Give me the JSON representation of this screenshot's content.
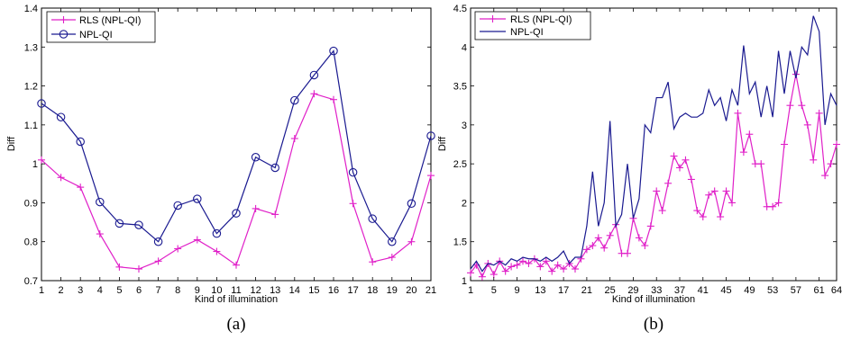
{
  "colors": {
    "rls": "#e020c8",
    "npl": "#1a1a90"
  },
  "chart_data": [
    {
      "type": "line",
      "caption": "(a)",
      "xlabel": "Kind of illumination",
      "ylabel": "Diff",
      "xlim": [
        1,
        21
      ],
      "ylim": [
        0.7,
        1.4
      ],
      "xticks": [
        1,
        2,
        3,
        4,
        5,
        6,
        7,
        8,
        9,
        10,
        11,
        12,
        13,
        14,
        15,
        16,
        17,
        18,
        19,
        20,
        21
      ],
      "yticks": [
        0.7,
        0.8,
        0.9,
        1.0,
        1.1,
        1.2,
        1.3,
        1.4
      ],
      "ytick_labels": [
        "0.7",
        "0.8",
        "0.9",
        "1",
        "1.1",
        "1.2",
        "1.3",
        "1.4"
      ],
      "legend": "top-left",
      "x": [
        1,
        2,
        3,
        4,
        5,
        6,
        7,
        8,
        9,
        10,
        11,
        12,
        13,
        14,
        15,
        16,
        17,
        18,
        19,
        20,
        21
      ],
      "series": [
        {
          "name": "RLS (NPL-QI)",
          "color_key": "rls",
          "marker": "plus",
          "values": [
            1.01,
            0.965,
            0.94,
            0.82,
            0.735,
            0.73,
            0.75,
            0.782,
            0.805,
            0.775,
            0.74,
            0.885,
            0.87,
            1.065,
            1.18,
            1.165,
            0.898,
            0.748,
            0.76,
            0.8,
            0.97
          ]
        },
        {
          "name": "NPL-QI",
          "color_key": "npl",
          "marker": "circle",
          "values": [
            1.155,
            1.12,
            1.057,
            0.902,
            0.847,
            0.843,
            0.8,
            0.893,
            0.91,
            0.821,
            0.873,
            1.017,
            0.99,
            1.163,
            1.228,
            1.29,
            0.978,
            0.859,
            0.8,
            0.898,
            1.072
          ]
        }
      ]
    },
    {
      "type": "line",
      "caption": "(b)",
      "xlabel": "Kind of illumination",
      "ylabel": "Diff",
      "xlim": [
        1,
        64
      ],
      "ylim": [
        1,
        4.5
      ],
      "xticks": [
        1,
        5,
        9,
        13,
        17,
        21,
        25,
        29,
        33,
        37,
        41,
        45,
        49,
        53,
        57,
        61,
        64
      ],
      "yticks": [
        1,
        1.5,
        2,
        2.5,
        3,
        3.5,
        4,
        4.5
      ],
      "ytick_labels": [
        "1",
        "1.5",
        "2",
        "2.5",
        "3",
        "3.5",
        "4",
        "4.5"
      ],
      "legend": "top-left",
      "series": [
        {
          "name": "RLS (NPL-QI)",
          "color_key": "rls",
          "marker": "plus",
          "x": [
            1,
            2,
            3,
            4,
            5,
            6,
            7,
            8,
            9,
            10,
            11,
            12,
            13,
            14,
            15,
            16,
            17,
            18,
            19,
            20,
            21,
            22,
            23,
            24,
            25,
            26,
            27,
            28,
            29,
            30,
            31,
            32,
            33,
            34,
            35,
            36,
            37,
            38,
            39,
            40,
            41,
            42,
            43,
            44,
            45,
            46,
            47,
            48,
            49,
            50,
            51,
            52,
            53,
            54,
            55,
            56,
            57,
            58,
            59,
            60,
            61,
            62,
            63,
            64
          ],
          "values": [
            1.1,
            1.2,
            1.05,
            1.22,
            1.08,
            1.25,
            1.12,
            1.18,
            1.2,
            1.25,
            1.22,
            1.28,
            1.18,
            1.25,
            1.12,
            1.2,
            1.15,
            1.22,
            1.15,
            1.28,
            1.4,
            1.45,
            1.55,
            1.42,
            1.58,
            1.72,
            1.35,
            1.35,
            1.8,
            1.55,
            1.45,
            1.7,
            2.15,
            1.9,
            2.25,
            2.6,
            2.45,
            2.55,
            2.3,
            1.9,
            1.82,
            2.1,
            2.15,
            1.82,
            2.15,
            2.0,
            3.15,
            2.65,
            2.88,
            2.5,
            2.5,
            1.95,
            1.95,
            2.0,
            2.75,
            3.25,
            3.65,
            3.25,
            3.0,
            2.55,
            3.15,
            2.35,
            2.5,
            2.75
          ]
        },
        {
          "name": "NPL-QI",
          "color_key": "npl",
          "marker": "none",
          "x": [
            1,
            2,
            3,
            4,
            5,
            6,
            7,
            8,
            9,
            10,
            11,
            12,
            13,
            14,
            15,
            16,
            17,
            18,
            19,
            20,
            21,
            22,
            23,
            24,
            25,
            26,
            27,
            28,
            29,
            30,
            31,
            32,
            33,
            34,
            35,
            36,
            37,
            38,
            39,
            40,
            41,
            42,
            43,
            44,
            45,
            46,
            47,
            48,
            49,
            50,
            51,
            52,
            53,
            54,
            55,
            56,
            57,
            58,
            59,
            60,
            61,
            62,
            63,
            64
          ],
          "values": [
            1.15,
            1.25,
            1.12,
            1.22,
            1.2,
            1.25,
            1.2,
            1.28,
            1.25,
            1.3,
            1.28,
            1.28,
            1.25,
            1.3,
            1.25,
            1.3,
            1.38,
            1.22,
            1.3,
            1.3,
            1.7,
            2.4,
            1.7,
            2.0,
            3.05,
            1.7,
            1.85,
            2.5,
            1.8,
            2.05,
            3.0,
            2.9,
            3.35,
            3.35,
            3.55,
            2.95,
            3.1,
            3.15,
            3.1,
            3.1,
            3.15,
            3.45,
            3.25,
            3.35,
            3.05,
            3.45,
            3.25,
            4.02,
            3.4,
            3.55,
            3.1,
            3.5,
            3.1,
            3.95,
            3.4,
            3.95,
            3.6,
            4.0,
            3.9,
            4.4,
            4.2,
            3.0,
            3.4,
            3.25
          ]
        }
      ]
    }
  ]
}
